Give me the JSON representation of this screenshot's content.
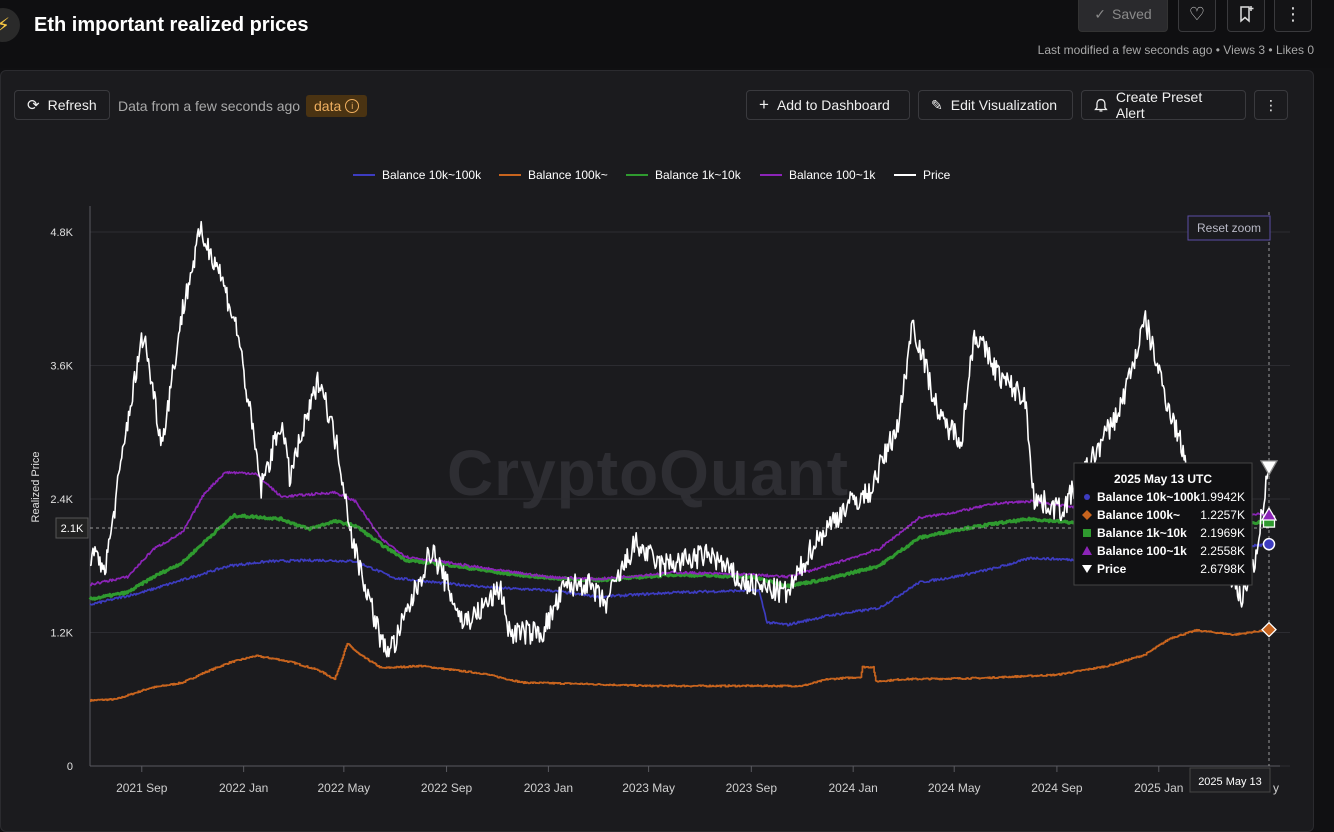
{
  "header": {
    "title": "Eth important realized prices",
    "saved_label": "Saved",
    "meta": "Last modified a few seconds ago • Views 3 • Likes 0"
  },
  "toolbar": {
    "refresh_label": "Refresh",
    "data_status": "Data from a few seconds ago",
    "data_badge": "data",
    "add_dashboard_label": "Add to Dashboard",
    "edit_visualization_label": "Edit Visualization",
    "create_alert_label": "Create Preset Alert"
  },
  "chart": {
    "reset_zoom_label": "Reset zoom",
    "watermark": "CryptoQuant",
    "crosshair_y_label": "2.1K",
    "crosshair_x_label": "2025 May 13",
    "x_tick_tail": "y",
    "tooltip": {
      "title": "2025 May 13 UTC",
      "rows": [
        {
          "name": "Balance 10k~100k",
          "value": "1.9942K"
        },
        {
          "name": "Balance 100k~",
          "value": "1.2257K"
        },
        {
          "name": "Balance 1k~10k",
          "value": "2.1969K"
        },
        {
          "name": "Balance 100~1k",
          "value": "2.2558K"
        },
        {
          "name": "Price",
          "value": "2.6798K"
        }
      ]
    }
  },
  "colors": {
    "b10k100k": "#3d3cc0",
    "b100k": "#c8641e",
    "b1k10k": "#2f9a2f",
    "b100_1k": "#8c24b8",
    "price": "#ffffff"
  },
  "chart_data": {
    "type": "line",
    "ylabel": "Realized Price",
    "ylim": [
      0,
      4800
    ],
    "y_ticks": [
      {
        "v": 0,
        "label": "0"
      },
      {
        "v": 1200,
        "label": "1.2K"
      },
      {
        "v": 2400,
        "label": "2.4K"
      },
      {
        "v": 3600,
        "label": "3.6K"
      },
      {
        "v": 4800,
        "label": "4.8K"
      }
    ],
    "xlim": [
      "2021-07-01",
      "2025-05-13"
    ],
    "x_ticks": [
      {
        "date": "2021-09-01",
        "label": "2021 Sep"
      },
      {
        "date": "2022-01-01",
        "label": "2022 Jan"
      },
      {
        "date": "2022-05-01",
        "label": "2022 May"
      },
      {
        "date": "2022-09-01",
        "label": "2022 Sep"
      },
      {
        "date": "2023-01-01",
        "label": "2023 Jan"
      },
      {
        "date": "2023-05-01",
        "label": "2023 May"
      },
      {
        "date": "2023-09-01",
        "label": "2023 Sep"
      },
      {
        "date": "2024-01-01",
        "label": "2024 Jan"
      },
      {
        "date": "2024-05-01",
        "label": "2024 May"
      },
      {
        "date": "2024-09-01",
        "label": "2024 Sep"
      },
      {
        "date": "2025-01-01",
        "label": "2025 Jan"
      }
    ],
    "legend_position": "top-center",
    "grid": true,
    "series": [
      {
        "name": "Balance 10k~100k",
        "key": "b10k100k",
        "marker": "circle",
        "points": [
          [
            "2021-07-01",
            1450
          ],
          [
            "2021-09-01",
            1560
          ],
          [
            "2021-11-01",
            1700
          ],
          [
            "2021-12-15",
            1800
          ],
          [
            "2022-02-01",
            1840
          ],
          [
            "2022-04-01",
            1850
          ],
          [
            "2022-05-15",
            1840
          ],
          [
            "2022-07-01",
            1690
          ],
          [
            "2022-09-01",
            1640
          ],
          [
            "2022-11-01",
            1600
          ],
          [
            "2023-01-01",
            1580
          ],
          [
            "2023-03-01",
            1520
          ],
          [
            "2023-06-01",
            1560
          ],
          [
            "2023-09-10",
            1580
          ],
          [
            "2023-09-20",
            1290
          ],
          [
            "2023-10-15",
            1270
          ],
          [
            "2023-12-01",
            1350
          ],
          [
            "2024-02-01",
            1420
          ],
          [
            "2024-03-20",
            1650
          ],
          [
            "2024-05-01",
            1700
          ],
          [
            "2024-06-20",
            1780
          ],
          [
            "2024-08-01",
            1870
          ],
          [
            "2024-10-01",
            1850
          ],
          [
            "2024-12-01",
            1870
          ],
          [
            "2025-02-01",
            1900
          ],
          [
            "2025-04-01",
            1960
          ],
          [
            "2025-05-13",
            1994
          ]
        ]
      },
      {
        "name": "Balance 100k~",
        "key": "b100k",
        "marker": "diamond",
        "points": [
          [
            "2021-07-01",
            590
          ],
          [
            "2021-08-01",
            600
          ],
          [
            "2021-09-10",
            700
          ],
          [
            "2021-10-20",
            750
          ],
          [
            "2021-11-15",
            840
          ],
          [
            "2021-12-15",
            930
          ],
          [
            "2022-01-15",
            990
          ],
          [
            "2022-02-10",
            960
          ],
          [
            "2022-03-01",
            930
          ],
          [
            "2022-04-01",
            860
          ],
          [
            "2022-04-20",
            780
          ],
          [
            "2022-05-05",
            1100
          ],
          [
            "2022-05-20",
            1000
          ],
          [
            "2022-06-15",
            880
          ],
          [
            "2022-08-01",
            900
          ],
          [
            "2022-09-01",
            870
          ],
          [
            "2022-10-15",
            830
          ],
          [
            "2022-12-01",
            750
          ],
          [
            "2023-02-01",
            740
          ],
          [
            "2023-05-01",
            720
          ],
          [
            "2023-08-01",
            720
          ],
          [
            "2023-11-01",
            720
          ],
          [
            "2023-12-01",
            780
          ],
          [
            "2024-01-10",
            800
          ],
          [
            "2024-01-12",
            890
          ],
          [
            "2024-01-25",
            890
          ],
          [
            "2024-01-28",
            760
          ],
          [
            "2024-03-01",
            780
          ],
          [
            "2024-06-01",
            790
          ],
          [
            "2024-09-01",
            820
          ],
          [
            "2024-11-01",
            900
          ],
          [
            "2024-12-15",
            1000
          ],
          [
            "2025-01-15",
            1150
          ],
          [
            "2025-02-15",
            1220
          ],
          [
            "2025-04-01",
            1180
          ],
          [
            "2025-05-13",
            1226
          ]
        ]
      },
      {
        "name": "Balance 1k~10k",
        "key": "b1k10k",
        "marker": "square",
        "points": [
          [
            "2021-07-01",
            1500
          ],
          [
            "2021-08-15",
            1560
          ],
          [
            "2021-09-15",
            1700
          ],
          [
            "2021-10-20",
            1830
          ],
          [
            "2021-11-20",
            2050
          ],
          [
            "2021-12-20",
            2250
          ],
          [
            "2022-01-15",
            2240
          ],
          [
            "2022-02-15",
            2220
          ],
          [
            "2022-03-20",
            2130
          ],
          [
            "2022-04-20",
            2200
          ],
          [
            "2022-05-15",
            2160
          ],
          [
            "2022-06-15",
            1990
          ],
          [
            "2022-07-15",
            1850
          ],
          [
            "2022-09-01",
            1810
          ],
          [
            "2022-11-01",
            1740
          ],
          [
            "2023-01-01",
            1690
          ],
          [
            "2023-03-01",
            1670
          ],
          [
            "2023-06-01",
            1720
          ],
          [
            "2023-09-01",
            1700
          ],
          [
            "2023-10-15",
            1620
          ],
          [
            "2023-12-01",
            1680
          ],
          [
            "2024-02-01",
            1800
          ],
          [
            "2024-03-20",
            2050
          ],
          [
            "2024-05-01",
            2120
          ],
          [
            "2024-06-20",
            2180
          ],
          [
            "2024-08-01",
            2220
          ],
          [
            "2024-10-01",
            2180
          ],
          [
            "2024-12-01",
            2150
          ],
          [
            "2025-02-01",
            2150
          ],
          [
            "2025-05-13",
            2197
          ]
        ]
      },
      {
        "name": "Balance 100~1k",
        "key": "b100_1k",
        "marker": "triangle-up",
        "points": [
          [
            "2021-07-01",
            1630
          ],
          [
            "2021-08-15",
            1700
          ],
          [
            "2021-09-15",
            1950
          ],
          [
            "2021-10-20",
            2100
          ],
          [
            "2021-11-15",
            2450
          ],
          [
            "2021-12-10",
            2640
          ],
          [
            "2022-01-15",
            2630
          ],
          [
            "2022-02-15",
            2420
          ],
          [
            "2022-03-20",
            2440
          ],
          [
            "2022-04-20",
            2460
          ],
          [
            "2022-05-15",
            2380
          ],
          [
            "2022-06-15",
            2040
          ],
          [
            "2022-07-15",
            1880
          ],
          [
            "2022-09-01",
            1830
          ],
          [
            "2022-11-01",
            1760
          ],
          [
            "2023-01-01",
            1700
          ],
          [
            "2023-03-01",
            1680
          ],
          [
            "2023-06-01",
            1740
          ],
          [
            "2023-09-01",
            1720
          ],
          [
            "2023-10-15",
            1700
          ],
          [
            "2023-12-01",
            1800
          ],
          [
            "2024-02-01",
            1950
          ],
          [
            "2024-03-20",
            2230
          ],
          [
            "2024-05-01",
            2280
          ],
          [
            "2024-06-20",
            2360
          ],
          [
            "2024-08-01",
            2380
          ],
          [
            "2024-10-01",
            2320
          ],
          [
            "2024-12-01",
            2300
          ],
          [
            "2025-02-01",
            2310
          ],
          [
            "2025-05-13",
            2256
          ]
        ]
      },
      {
        "name": "Price",
        "key": "price",
        "marker": "triangle-down",
        "points": [
          [
            "2021-07-01",
            1900
          ],
          [
            "2021-07-20",
            1800
          ],
          [
            "2021-08-15",
            3100
          ],
          [
            "2021-09-03",
            3900
          ],
          [
            "2021-09-25",
            2900
          ],
          [
            "2021-10-20",
            4100
          ],
          [
            "2021-11-10",
            4800
          ],
          [
            "2021-12-01",
            4500
          ],
          [
            "2021-12-25",
            3900
          ],
          [
            "2022-01-22",
            2500
          ],
          [
            "2022-02-15",
            3100
          ],
          [
            "2022-02-25",
            2600
          ],
          [
            "2022-04-02",
            3500
          ],
          [
            "2022-04-25",
            2800
          ],
          [
            "2022-05-12",
            2000
          ],
          [
            "2022-06-18",
            1050
          ],
          [
            "2022-07-01",
            1100
          ],
          [
            "2022-08-14",
            1950
          ],
          [
            "2022-09-20",
            1300
          ],
          [
            "2022-10-05",
            1350
          ],
          [
            "2022-11-05",
            1600
          ],
          [
            "2022-11-15",
            1200
          ],
          [
            "2022-12-25",
            1200
          ],
          [
            "2023-01-20",
            1600
          ],
          [
            "2023-02-15",
            1650
          ],
          [
            "2023-03-10",
            1450
          ],
          [
            "2023-04-15",
            2000
          ],
          [
            "2023-05-15",
            1800
          ],
          [
            "2023-07-15",
            1900
          ],
          [
            "2023-08-20",
            1650
          ],
          [
            "2023-10-15",
            1550
          ],
          [
            "2023-11-15",
            2000
          ],
          [
            "2023-12-25",
            2350
          ],
          [
            "2024-01-20",
            2450
          ],
          [
            "2024-02-25",
            3100
          ],
          [
            "2024-03-12",
            4000
          ],
          [
            "2024-04-15",
            3100
          ],
          [
            "2024-05-10",
            2950
          ],
          [
            "2024-05-25",
            3900
          ],
          [
            "2024-06-25",
            3500
          ],
          [
            "2024-07-25",
            3300
          ],
          [
            "2024-08-05",
            2400
          ],
          [
            "2024-09-07",
            2300
          ],
          [
            "2024-10-01",
            2600
          ],
          [
            "2024-11-15",
            3200
          ],
          [
            "2024-12-16",
            4000
          ],
          [
            "2025-01-10",
            3300
          ],
          [
            "2025-02-05",
            2700
          ],
          [
            "2025-03-10",
            2100
          ],
          [
            "2025-04-09",
            1500
          ],
          [
            "2025-04-25",
            1800
          ],
          [
            "2025-05-13",
            2680
          ]
        ]
      }
    ]
  }
}
